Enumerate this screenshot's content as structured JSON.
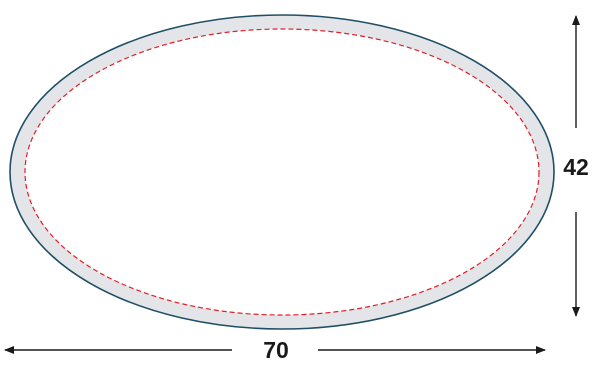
{
  "diagram": {
    "width_label": "70",
    "height_label": "42",
    "colors": {
      "outline": "#1f4f66",
      "band_fill": "#e3e5e8",
      "inner_fill": "#ffffff",
      "safe_line": "#e0202a",
      "arrow": "#1a1a1a"
    }
  }
}
